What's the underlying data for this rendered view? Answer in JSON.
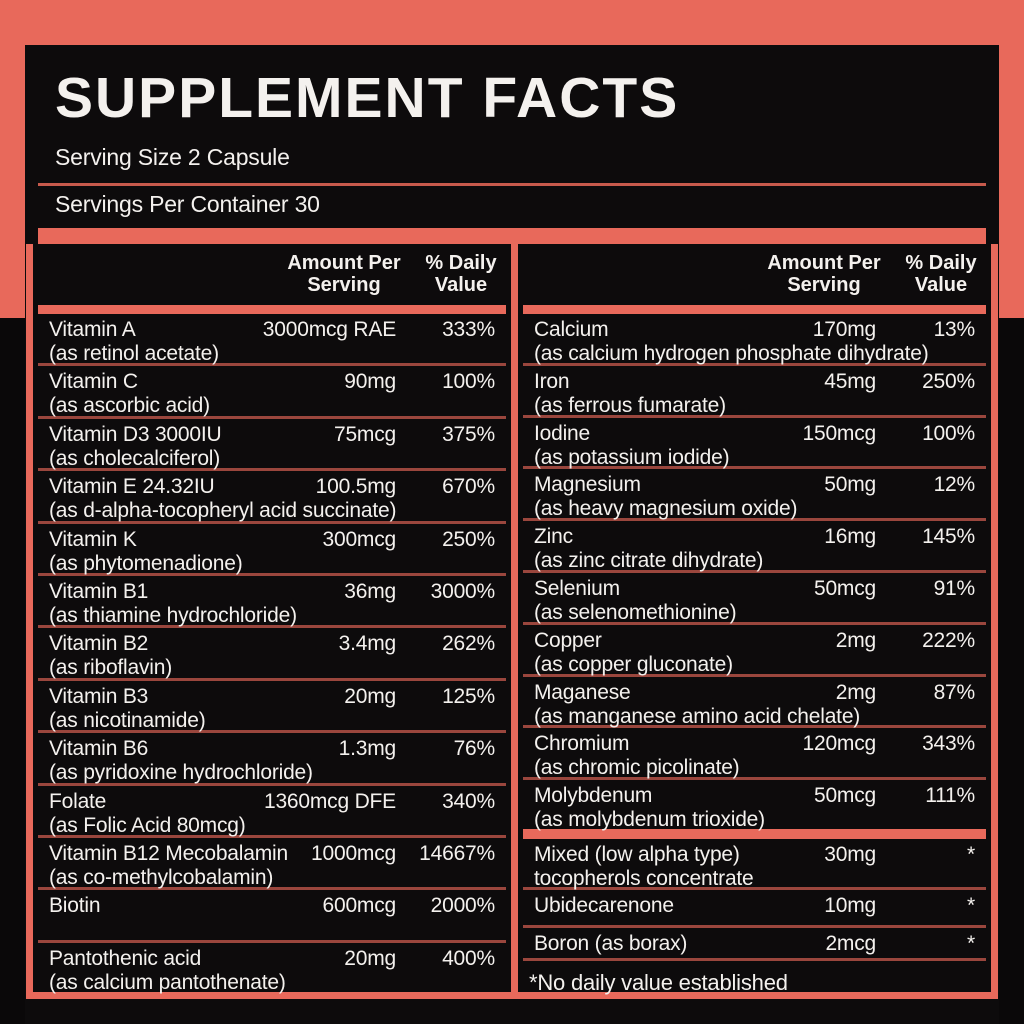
{
  "header": {
    "title": "SUPPLEMENT FACTS",
    "serving_size": "Serving Size 2 Capsule",
    "servings_per_container": "Servings Per Container 30"
  },
  "table": {
    "amount_header": "Amount Per Serving",
    "dv_header": "% Daily Value",
    "left_rows": [
      {
        "name": "Vitamin A",
        "detail": "(as retinol acetate)",
        "amount": "3000mcg RAE",
        "dv": "333%"
      },
      {
        "name": "Vitamin C",
        "detail": "(as ascorbic acid)",
        "amount": "90mg",
        "dv": "100%"
      },
      {
        "name": "Vitamin D3 3000IU",
        "detail": "(as cholecalciferol)",
        "amount": "75mcg",
        "dv": "375%"
      },
      {
        "name": "Vitamin E 24.32IU",
        "detail": "(as d-alpha-tocopheryl acid succinate)",
        "amount": "100.5mg",
        "dv": "670%"
      },
      {
        "name": "Vitamin K",
        "detail": "(as phytomenadione)",
        "amount": "300mcg",
        "dv": "250%"
      },
      {
        "name": "Vitamin B1",
        "detail": "(as thiamine hydrochloride)",
        "amount": "36mg",
        "dv": "3000%"
      },
      {
        "name": "Vitamin B2",
        "detail": "(as riboflavin)",
        "amount": "3.4mg",
        "dv": "262%"
      },
      {
        "name": "Vitamin B3",
        "detail": "(as nicotinamide)",
        "amount": "20mg",
        "dv": "125%"
      },
      {
        "name": "Vitamin B6",
        "detail": "(as pyridoxine hydrochloride)",
        "amount": "1.3mg",
        "dv": "76%"
      },
      {
        "name": "Folate",
        "detail": "(as Folic Acid 80mcg)",
        "amount": "1360mcg DFE",
        "dv": "340%"
      },
      {
        "name": "Vitamin B12 Mecobalamin",
        "detail": "(as co-methylcobalamin)",
        "amount": "1000mcg",
        "dv": "14667%"
      },
      {
        "name": "Biotin",
        "detail": "",
        "amount": "600mcg",
        "dv": "2000%"
      },
      {
        "name": "Pantothenic acid",
        "detail": "(as calcium pantothenate)",
        "amount": "20mg",
        "dv": "400%"
      }
    ],
    "right_rows": [
      {
        "name": "Calcium",
        "detail": "(as calcium hydrogen phosphate dihydrate)",
        "amount": "170mg",
        "dv": "13%"
      },
      {
        "name": "Iron",
        "detail": "(as ferrous fumarate)",
        "amount": "45mg",
        "dv": "250%"
      },
      {
        "name": "Iodine",
        "detail": "(as potassium iodide)",
        "amount": "150mcg",
        "dv": "100%"
      },
      {
        "name": "Magnesium",
        "detail": "(as heavy magnesium oxide)",
        "amount": "50mg",
        "dv": "12%"
      },
      {
        "name": "Zinc",
        "detail": "(as zinc citrate dihydrate)",
        "amount": "16mg",
        "dv": "145%"
      },
      {
        "name": "Selenium",
        "detail": "(as selenomethionine)",
        "amount": "50mcg",
        "dv": "91%"
      },
      {
        "name": "Copper",
        "detail": "(as copper gluconate)",
        "amount": "2mg",
        "dv": "222%"
      },
      {
        "name": "Maganese",
        "detail": "(as manganese amino acid chelate)",
        "amount": "2mg",
        "dv": "87%"
      },
      {
        "name": "Chromium",
        "detail": "(as chromic picolinate)",
        "amount": "120mcg",
        "dv": "343%"
      },
      {
        "name": "Molybdenum",
        "detail": "(as molybdenum trioxide)",
        "amount": "50mcg",
        "dv": "111%"
      }
    ],
    "no_daily_value_rows": [
      {
        "name": "Mixed (low alpha type)",
        "detail": "tocopherols concentrate",
        "amount": "30mg",
        "dv": "*"
      },
      {
        "name": "Ubidecarenone",
        "detail": "",
        "amount": "10mg",
        "dv": "*"
      },
      {
        "name": "Boron (as borax)",
        "detail": "",
        "amount": "2mcg",
        "dv": "*"
      }
    ],
    "footnote": "*No daily value established"
  },
  "colors": {
    "salmon": "#E8695B",
    "separator": "#9A463D",
    "panel_black": "#0D0B0C",
    "text_white": "#F4F1EE"
  }
}
